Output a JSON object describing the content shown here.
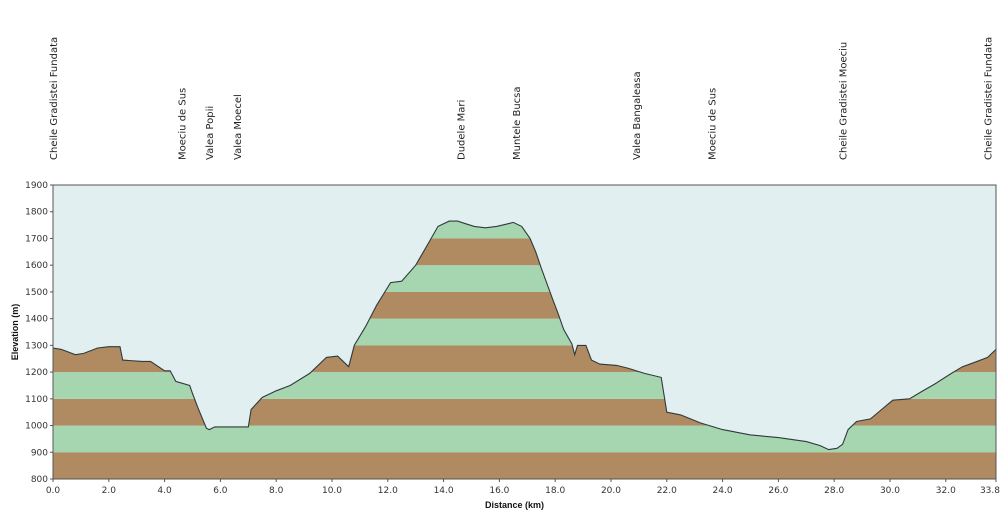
{
  "chart_data": {
    "type": "area",
    "title": "",
    "xlabel": "Distance  (km)",
    "ylabel": "Elevation (m)",
    "xlim": [
      0,
      33.8
    ],
    "ylim": [
      800,
      1900
    ],
    "x_ticks": [
      "0.0",
      "2.0",
      "4.0",
      "6.0",
      "8.0",
      "10.0",
      "12.0",
      "14.0",
      "16.0",
      "18.0",
      "20.0",
      "22.0",
      "24.0",
      "26.0",
      "28.0",
      "30.0",
      "32.0",
      "33.8"
    ],
    "y_ticks": [
      "800",
      "900",
      "1000",
      "1100",
      "1200",
      "1300",
      "1400",
      "1500",
      "1600",
      "1700",
      "1800",
      "1900"
    ],
    "band_colors": [
      "#b08a61",
      "#a6d6b0"
    ],
    "sky_color": "#e2eff1",
    "line_color": "#2f3a3a",
    "waypoints": [
      {
        "km": 0.0,
        "label": "Cheile Gradistei Fundata"
      },
      {
        "km": 4.6,
        "label": "Moeciu de Sus"
      },
      {
        "km": 5.6,
        "label": "Valea Popii"
      },
      {
        "km": 6.6,
        "label": "Valea Moecel"
      },
      {
        "km": 14.6,
        "label": "Dudele Mari"
      },
      {
        "km": 16.6,
        "label": "Muntele Bucsa"
      },
      {
        "km": 20.9,
        "label": "Valea Bangaleasa"
      },
      {
        "km": 23.6,
        "label": "Moeciu de Sus"
      },
      {
        "km": 28.3,
        "label": "Cheile Gradistei Moeciu"
      },
      {
        "km": 33.5,
        "label": "Cheile Gradistei Fundata"
      }
    ],
    "series": [
      {
        "x": [
          0,
          0.3,
          0.8,
          1.1,
          1.6,
          2.0,
          2.4,
          2.5,
          3.2,
          3.5,
          4.0,
          4.2,
          4.4,
          4.9,
          4.9,
          5.0,
          5.2,
          5.5,
          5.6,
          5.8,
          6.2,
          6.8,
          7.0,
          7.1,
          7.5,
          8.0,
          8.5,
          9.2,
          9.8,
          10.2,
          10.6,
          10.8,
          11.2,
          11.6,
          12.1,
          12.5,
          13.0,
          13.5,
          13.8,
          14.2,
          14.5,
          14.8,
          15.1,
          15.5,
          15.9,
          16.3,
          16.5,
          16.8,
          17.1,
          17.3,
          17.5,
          17.9,
          18.1,
          18.3,
          18.6,
          18.7,
          18.8,
          19.1,
          19.3,
          19.6,
          20.2,
          20.6,
          21.2,
          21.8,
          22.0,
          22.5,
          23.2,
          24.0,
          25.0,
          26.0,
          27.0,
          27.5,
          27.8,
          28.1,
          28.3,
          28.5,
          28.8,
          29.3,
          29.7,
          30.1,
          30.7,
          31.1,
          31.6,
          32.2,
          32.6,
          33.0,
          33.5,
          33.8
        ],
        "y": [
          1290,
          1285,
          1265,
          1270,
          1290,
          1295,
          1295,
          1245,
          1240,
          1240,
          1205,
          1205,
          1165,
          1150,
          1150,
          1120,
          1065,
          990,
          985,
          995,
          995,
          995,
          995,
          1060,
          1105,
          1130,
          1150,
          1195,
          1255,
          1260,
          1220,
          1300,
          1370,
          1450,
          1535,
          1540,
          1600,
          1690,
          1745,
          1765,
          1765,
          1755,
          1745,
          1740,
          1745,
          1755,
          1760,
          1745,
          1700,
          1650,
          1590,
          1475,
          1420,
          1360,
          1305,
          1265,
          1300,
          1300,
          1245,
          1230,
          1225,
          1215,
          1195,
          1180,
          1050,
          1040,
          1010,
          985,
          965,
          955,
          940,
          925,
          910,
          915,
          930,
          985,
          1015,
          1025,
          1060,
          1095,
          1100,
          1125,
          1155,
          1195,
          1220,
          1235,
          1255,
          1285
        ]
      }
    ],
    "grid": false,
    "legend": "none"
  }
}
